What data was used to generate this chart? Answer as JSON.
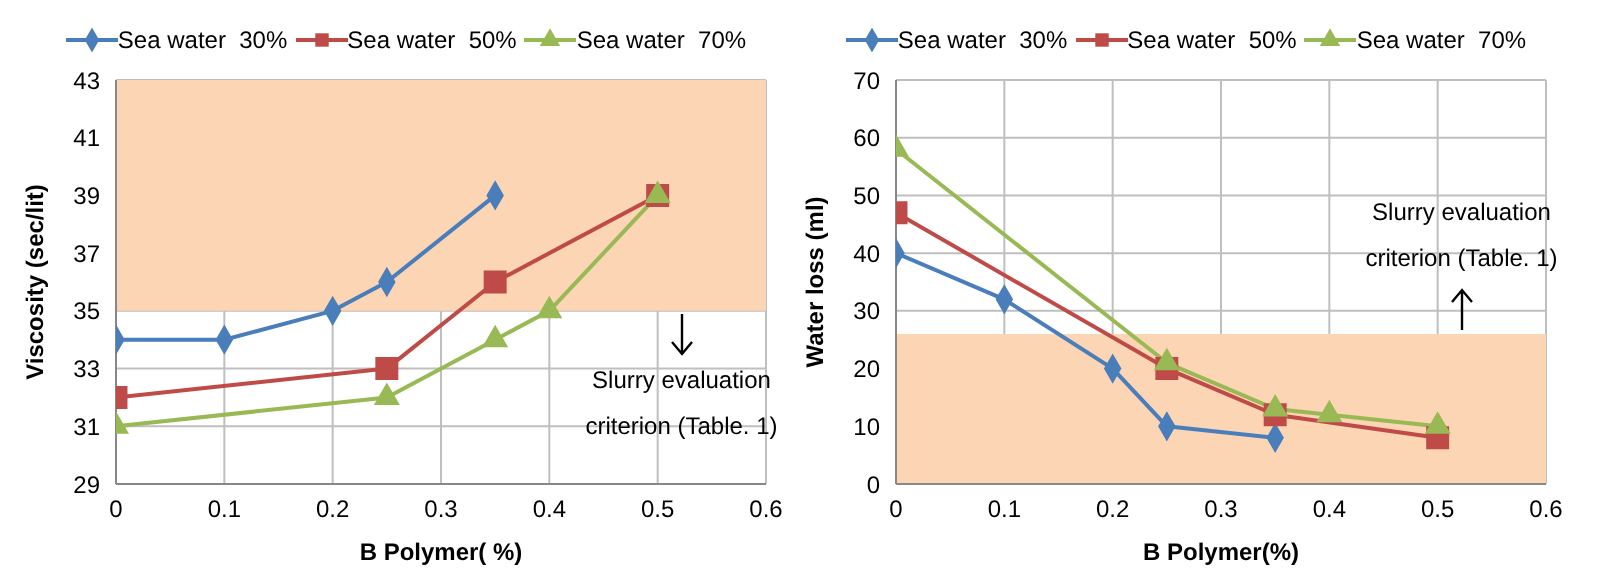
{
  "chart_data": [
    {
      "type": "line",
      "xlabel": "B Polymer( %)",
      "ylabel": "Viscosity (sec/lit)",
      "xlim": [
        0,
        0.6
      ],
      "xticks": [
        0,
        0.1,
        0.2,
        0.3,
        0.4,
        0.5,
        0.6
      ],
      "ylim": [
        29,
        43
      ],
      "yticks": [
        29,
        31,
        33,
        35,
        37,
        39,
        41,
        43
      ],
      "grid": true,
      "legend": "top",
      "bands": [
        {
          "axis": "y",
          "from": 35,
          "to": 43,
          "color": "#fcd5b5"
        }
      ],
      "annotations": [
        "Slurry evaluation criterion (Table. 1)"
      ],
      "series": [
        {
          "name": "Sea water  30%",
          "color": "#4a7ebb",
          "marker": "diamond",
          "x": [
            0,
            0.1,
            0.2,
            0.25,
            0.35
          ],
          "values": [
            34,
            34,
            35,
            36,
            39
          ]
        },
        {
          "name": "Sea water  50%",
          "color": "#be4b48",
          "marker": "square",
          "x": [
            0,
            0.25,
            0.35,
            0.5
          ],
          "values": [
            32,
            33,
            36,
            39
          ]
        },
        {
          "name": "Sea water  70%",
          "color": "#98b954",
          "marker": "triangle",
          "x": [
            0,
            0.25,
            0.35,
            0.4,
            0.5
          ],
          "values": [
            31,
            32,
            34,
            35,
            39
          ]
        }
      ]
    },
    {
      "type": "line",
      "xlabel": "B Polymer(%)",
      "ylabel": "Water loss (ml)",
      "xlim": [
        0,
        0.6
      ],
      "xticks": [
        0,
        0.1,
        0.2,
        0.3,
        0.4,
        0.5,
        0.6
      ],
      "ylim": [
        0,
        70
      ],
      "yticks": [
        0,
        10,
        20,
        30,
        40,
        50,
        60,
        70
      ],
      "grid": true,
      "legend": "top",
      "bands": [
        {
          "axis": "y",
          "from": 0,
          "to": 26,
          "color": "#fcd5b5"
        }
      ],
      "annotations": [
        "Slurry evaluation criterion (Table. 1)"
      ],
      "series": [
        {
          "name": "Sea water  30%",
          "color": "#4a7ebb",
          "marker": "diamond",
          "x": [
            0,
            0.1,
            0.2,
            0.25,
            0.35
          ],
          "values": [
            40,
            32,
            20,
            10,
            8
          ]
        },
        {
          "name": "Sea water  50%",
          "color": "#be4b48",
          "marker": "square",
          "x": [
            0,
            0.25,
            0.35,
            0.5
          ],
          "values": [
            47,
            20,
            12,
            8
          ]
        },
        {
          "name": "Sea water  70%",
          "color": "#98b954",
          "marker": "triangle",
          "x": [
            0,
            0.25,
            0.35,
            0.4,
            0.5
          ],
          "values": [
            58,
            21,
            13,
            12,
            10
          ]
        }
      ]
    }
  ]
}
